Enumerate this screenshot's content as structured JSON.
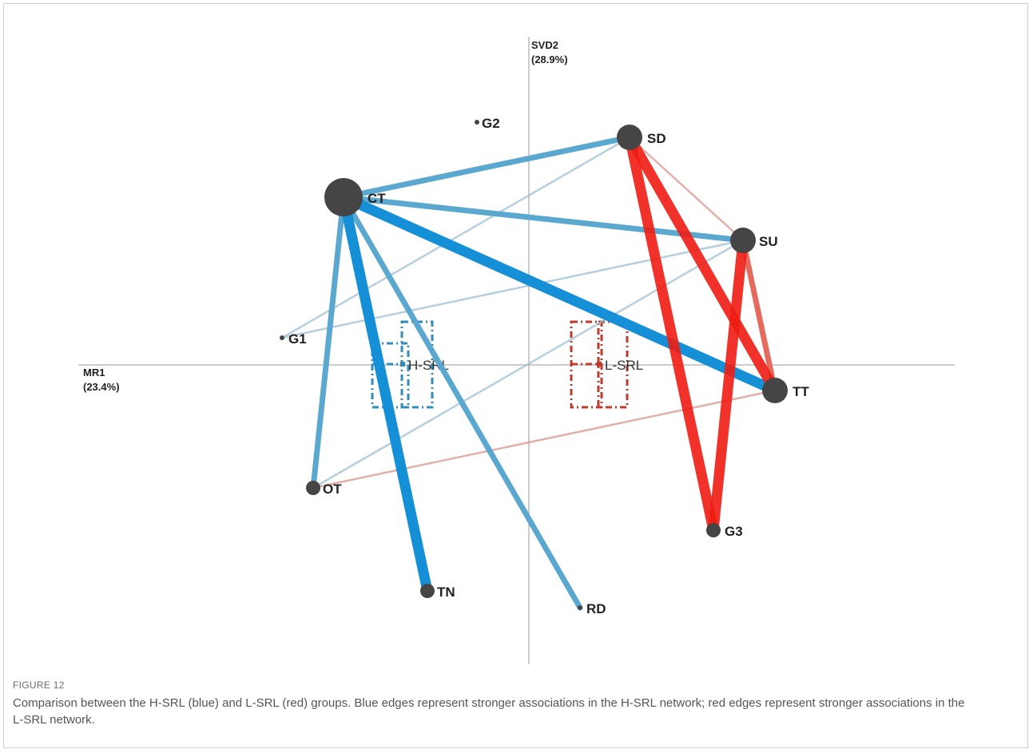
{
  "figure": {
    "label": "FIGURE 12",
    "caption": "Comparison between the H-SRL (blue) and L-SRL (red) groups. Blue edges represent stronger associations in the H-SRL network; red edges represent stronger associations in the L-SRL network."
  },
  "axes": {
    "x": {
      "name": "MR1",
      "variance": "(23.4%)"
    },
    "y": {
      "name": "SVD2",
      "variance": "(28.9%)"
    }
  },
  "colors": {
    "high": "#1590d6",
    "high_light": "#5aa8cf",
    "low": "#ee1c13",
    "low_light": "#d58e86",
    "node": "#454545"
  },
  "groups": [
    {
      "id": "H-SRL",
      "label": "H-SRL",
      "color": "#2f8cbc"
    },
    {
      "id": "L-SRL",
      "label": "L-SRL",
      "color": "#c0392b"
    }
  ],
  "nodes": [
    {
      "id": "CT",
      "label": "CT",
      "size": "large"
    },
    {
      "id": "SD",
      "label": "SD",
      "size": "medium"
    },
    {
      "id": "SU",
      "label": "SU",
      "size": "medium"
    },
    {
      "id": "TT",
      "label": "TT",
      "size": "medium"
    },
    {
      "id": "G1",
      "label": "G1",
      "size": "tiny"
    },
    {
      "id": "G2",
      "label": "G2",
      "size": "tiny"
    },
    {
      "id": "G3",
      "label": "G3",
      "size": "small"
    },
    {
      "id": "OT",
      "label": "OT",
      "size": "small"
    },
    {
      "id": "TN",
      "label": "TN",
      "size": "small"
    },
    {
      "id": "RD",
      "label": "RD",
      "size": "tiny"
    }
  ],
  "edges": [
    {
      "from": "CT",
      "to": "TT",
      "group": "H-SRL",
      "strength": "strong"
    },
    {
      "from": "CT",
      "to": "TN",
      "group": "H-SRL",
      "strength": "strong"
    },
    {
      "from": "CT",
      "to": "SD",
      "group": "H-SRL",
      "strength": "medium"
    },
    {
      "from": "CT",
      "to": "SU",
      "group": "H-SRL",
      "strength": "medium"
    },
    {
      "from": "CT",
      "to": "OT",
      "group": "H-SRL",
      "strength": "medium"
    },
    {
      "from": "CT",
      "to": "RD",
      "group": "H-SRL",
      "strength": "medium"
    },
    {
      "from": "G1",
      "to": "SD",
      "group": "H-SRL",
      "strength": "weak"
    },
    {
      "from": "G1",
      "to": "SU",
      "group": "H-SRL",
      "strength": "weak"
    },
    {
      "from": "OT",
      "to": "SU",
      "group": "H-SRL",
      "strength": "weak"
    },
    {
      "from": "SD",
      "to": "TT",
      "group": "L-SRL",
      "strength": "strong"
    },
    {
      "from": "SD",
      "to": "G3",
      "group": "L-SRL",
      "strength": "strong"
    },
    {
      "from": "SU",
      "to": "G3",
      "group": "L-SRL",
      "strength": "strong"
    },
    {
      "from": "SU",
      "to": "TT",
      "group": "L-SRL",
      "strength": "medium"
    },
    {
      "from": "SD",
      "to": "SU",
      "group": "L-SRL",
      "strength": "weak"
    },
    {
      "from": "OT",
      "to": "TT",
      "group": "L-SRL",
      "strength": "weak"
    }
  ]
}
